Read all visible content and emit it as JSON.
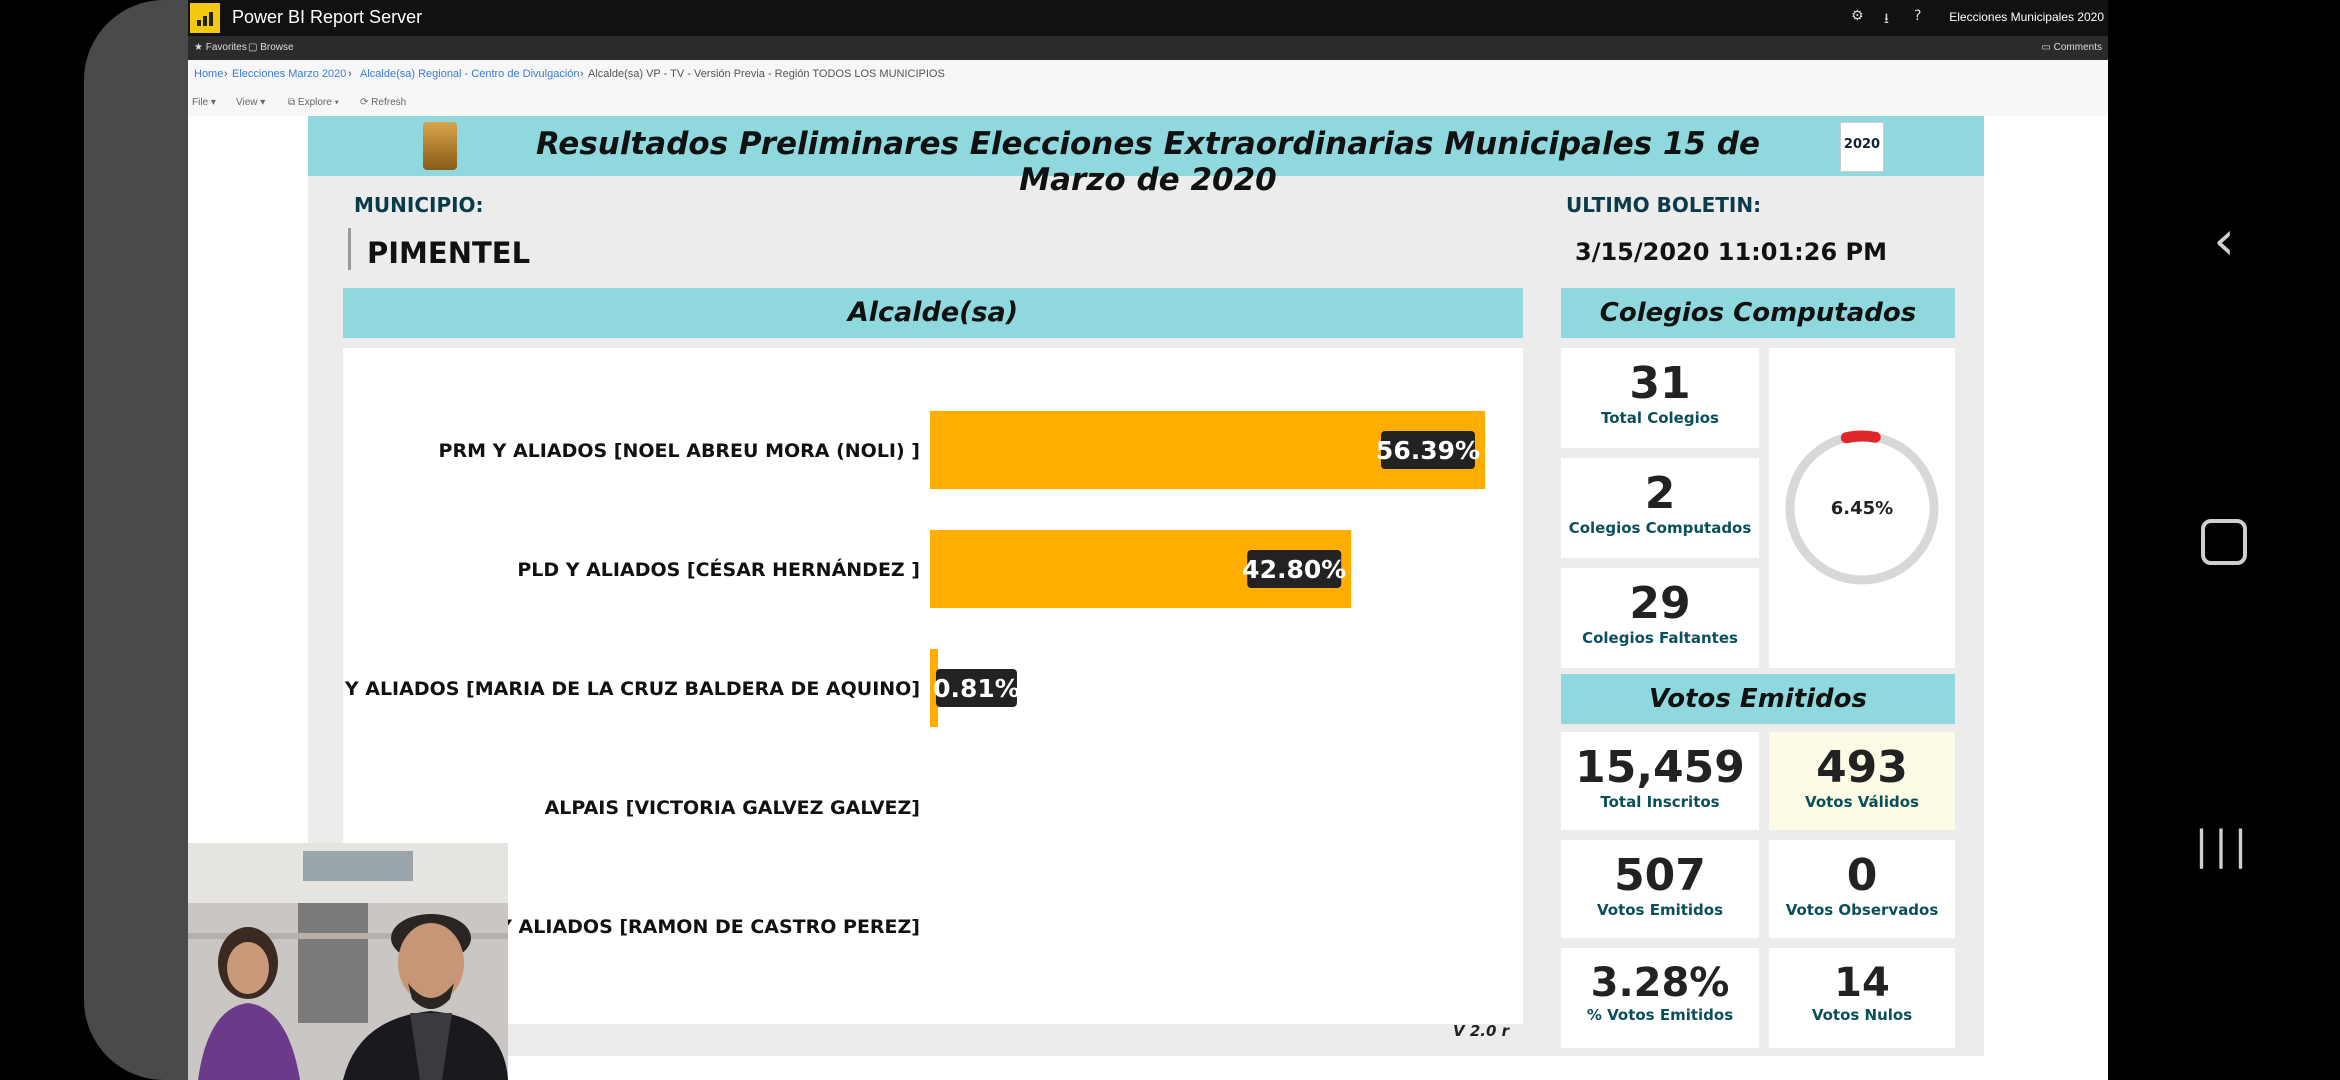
{
  "app": {
    "title": "Power BI Report Server",
    "report_name": "Elecciones Municipales 2020"
  },
  "favorites_bar": {
    "favorites": "Favorites",
    "browse": "Browse",
    "comments": "Comments"
  },
  "breadcrumb": {
    "items": [
      "Home",
      "Elecciones Marzo 2020",
      "Alcalde(sa) Regional - Centro de Divulgación",
      "Alcalde(sa) VP - TV - Versión Previa - Región TODOS LOS MUNICIPIOS"
    ]
  },
  "toolbar": {
    "file": "File",
    "view": "View",
    "explore": "Explore",
    "refresh": "Refresh"
  },
  "report": {
    "title": "Resultados Preliminares Elecciones Extraordinarias Municipales 15 de Marzo de 2020",
    "logo_year": "2020",
    "municipio_label": "MUNICIPIO:",
    "municipio_value": "PIMENTEL",
    "boletin_label": "ULTIMO BOLETIN:",
    "boletin_value": "3/15/2020 11:01:26 PM",
    "chart_header": "Alcalde(sa)",
    "version": "V 2.0 r",
    "colegios": {
      "header": "Colegios Computados",
      "total_value": "31",
      "total_label": "Total Colegios",
      "computados_value": "2",
      "computados_label": "Colegios Computados",
      "faltantes_value": "29",
      "faltantes_label": "Colegios Faltantes",
      "gauge_value": "6.45%",
      "gauge_fraction": 0.0645
    },
    "votos": {
      "header": "Votos Emitidos",
      "inscritos_value": "15,459",
      "inscritos_label": "Total Inscritos",
      "validos_value": "493",
      "validos_label": "Votos Válidos",
      "emitidos_value": "507",
      "emitidos_label": "Votos Emitidos",
      "observados_value": "0",
      "observados_label": "Votos Observados",
      "pct_value": "3.28%",
      "pct_label": "% Votos Emitidos",
      "nulos_value": "14",
      "nulos_label": "Votos Nulos"
    }
  },
  "chart_data": {
    "type": "bar",
    "orientation": "horizontal",
    "categories": [
      "PRM Y ALIADOS [NOEL ABREU MORA (NOLI) ]",
      "PLD Y ALIADOS [CÉSAR HERNÁNDEZ ]",
      "PHD Y ALIADOS [MARIA DE LA CRUZ BALDERA DE AQUINO]",
      "ALPAIS [VICTORIA GALVEZ GALVEZ]",
      "PRSC Y ALIADOS [RAMON DE CASTRO PEREZ]"
    ],
    "values": [
      56.39,
      42.8,
      0.81,
      0,
      0
    ],
    "data_labels": [
      "56.39%",
      "42.80%",
      "0.81%",
      "",
      ""
    ],
    "title": "Alcalde(sa)",
    "bar_color": "#ffad00",
    "xlim": [
      0,
      56.39
    ]
  },
  "colors": {
    "accent": "#8fd8dd",
    "bar": "#ffad00",
    "gauge": "#e0262a"
  }
}
